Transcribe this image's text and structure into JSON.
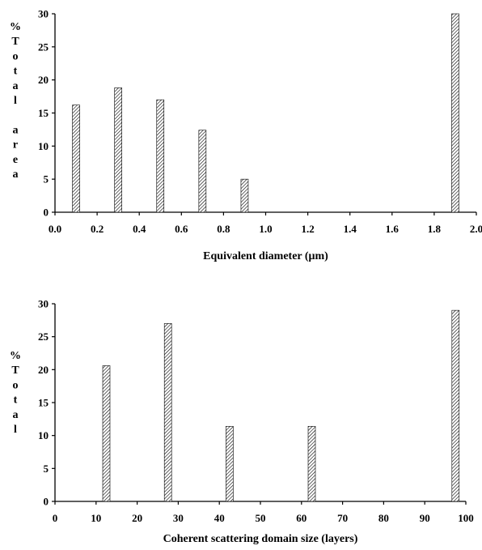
{
  "chart_data": [
    {
      "type": "bar",
      "xlabel": "Equivalent diameter (μm)",
      "ylabel_lines": [
        "%",
        "T",
        "o",
        "t",
        "a",
        "l",
        "",
        "a",
        "r",
        "e",
        "a"
      ],
      "xlim": [
        0.0,
        2.0
      ],
      "ylim": [
        0,
        30
      ],
      "xticks": [
        "0.0",
        "0.2",
        "0.4",
        "0.6",
        "0.8",
        "1.0",
        "1.2",
        "1.4",
        "1.6",
        "1.8",
        "2.0"
      ],
      "yticks": [
        "0",
        "5",
        "10",
        "15",
        "20",
        "25",
        "30"
      ],
      "x": [
        0.1,
        0.3,
        0.5,
        0.7,
        0.9,
        1.9
      ],
      "values": [
        16.2,
        18.8,
        17.0,
        12.4,
        5.0,
        30.0
      ]
    },
    {
      "type": "bar",
      "xlabel": "Coherent scattering domain size (layers)",
      "ylabel_lines": [
        "%",
        "T",
        "o",
        "t",
        "a",
        "l"
      ],
      "xlim": [
        0,
        100
      ],
      "ylim": [
        0,
        30
      ],
      "xticks": [
        "0",
        "10",
        "20",
        "30",
        "40",
        "50",
        "60",
        "70",
        "80",
        "90",
        "100"
      ],
      "yticks": [
        "0",
        "5",
        "10",
        "15",
        "20",
        "25",
        "30"
      ],
      "x": [
        12.5,
        27.5,
        42.5,
        62.5,
        97.5
      ],
      "values": [
        20.6,
        27.0,
        11.4,
        11.4,
        29.0
      ]
    }
  ]
}
